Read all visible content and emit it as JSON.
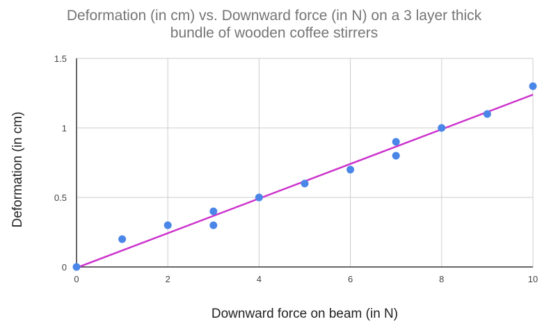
{
  "chart_data": {
    "type": "scatter",
    "title_lines": [
      "Deformation (in cm) vs. Downward force (in N) on a 3 layer thick",
      "bundle of wooden coffee stirrers"
    ],
    "xlabel": "Downward force on beam (in N)",
    "ylabel": "Deformation (in cm)",
    "xlim": [
      0,
      10
    ],
    "ylim": [
      0,
      1.5
    ],
    "x_ticks": [
      "0",
      "2",
      "4",
      "6",
      "8",
      "10"
    ],
    "y_ticks": [
      "0",
      "0.5",
      "1",
      "1.5"
    ],
    "grid": true,
    "legend": "none",
    "series": [
      {
        "points": [
          {
            "x": 0,
            "y": 0
          },
          {
            "x": 1,
            "y": 0.2
          },
          {
            "x": 2,
            "y": 0.3
          },
          {
            "x": 3,
            "y": 0.4
          },
          {
            "x": 3,
            "y": 0.3
          },
          {
            "x": 4,
            "y": 0.5
          },
          {
            "x": 5,
            "y": 0.6
          },
          {
            "x": 6,
            "y": 0.7
          },
          {
            "x": 7,
            "y": 0.9
          },
          {
            "x": 7,
            "y": 0.8
          },
          {
            "x": 8,
            "y": 1.0
          },
          {
            "x": 9,
            "y": 1.1
          },
          {
            "x": 10,
            "y": 1.3
          }
        ],
        "color": "#4a86e8"
      }
    ],
    "trendline": {
      "type": "linear",
      "slope": 0.1245,
      "intercept": -0.006,
      "x_range": [
        0,
        10
      ],
      "color": "#cc33cc"
    },
    "colors": {
      "grid": "#cccccc",
      "axis": "#333333",
      "title": "#757575"
    }
  }
}
